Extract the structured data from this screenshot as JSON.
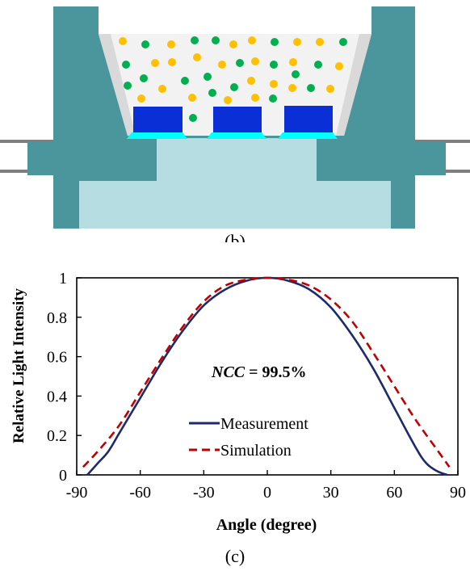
{
  "panel_b": {
    "caption": "(b)",
    "colors": {
      "housing": "#4a969c",
      "base_fill": "#b6dde2",
      "encapsulant": "#f2f2f2",
      "reflector_wall": "#d9d9d9",
      "chip": "#0b2fd6",
      "chip_base": "#00ffff",
      "phosphor_yellow": "#ffc000",
      "phosphor_green": "#00b050",
      "lead": "#7f7f7f"
    }
  },
  "panel_c": {
    "caption": "(c)",
    "annotation": {
      "ncc_label": "NCC",
      "ncc_value": " = 99.5%"
    },
    "legend": {
      "measurement": "Measurement",
      "simulation": "Simulation"
    },
    "colors": {
      "measurement": "#1f2a6b",
      "simulation": "#c00000"
    }
  },
  "chart_data": {
    "type": "line",
    "title": "",
    "xlabel": "Angle (degree)",
    "ylabel": "Relative Light Intensity",
    "xlim": [
      -90,
      90
    ],
    "ylim": [
      0,
      1
    ],
    "xticks": [
      -90,
      -60,
      -30,
      0,
      30,
      60,
      90
    ],
    "yticks": [
      0,
      0.2,
      0.4,
      0.6,
      0.8,
      1
    ],
    "ytick_labels": [
      "0",
      "0.2",
      "0.4",
      "0.6",
      "0.8",
      "1"
    ],
    "grid": false,
    "legend_position": "center-bottom",
    "series": [
      {
        "name": "Measurement",
        "style": "solid",
        "x": [
          -85,
          -80,
          -75,
          -70,
          -60,
          -50,
          -40,
          -30,
          -20,
          -10,
          0,
          10,
          20,
          30,
          40,
          50,
          60,
          70,
          75,
          80,
          85
        ],
        "y": [
          0.0,
          0.06,
          0.12,
          0.21,
          0.39,
          0.57,
          0.73,
          0.86,
          0.94,
          0.985,
          1.0,
          0.985,
          0.94,
          0.85,
          0.71,
          0.54,
          0.34,
          0.14,
          0.06,
          0.02,
          0.0
        ]
      },
      {
        "name": "Simulation",
        "style": "dashed",
        "x": [
          -87,
          -80,
          -70,
          -60,
          -50,
          -40,
          -30,
          -20,
          -10,
          0,
          10,
          20,
          30,
          40,
          50,
          60,
          70,
          80,
          86
        ],
        "y": [
          0.04,
          0.12,
          0.25,
          0.42,
          0.59,
          0.75,
          0.88,
          0.96,
          0.99,
          1.0,
          0.99,
          0.96,
          0.89,
          0.78,
          0.62,
          0.45,
          0.28,
          0.13,
          0.04
        ]
      }
    ]
  }
}
